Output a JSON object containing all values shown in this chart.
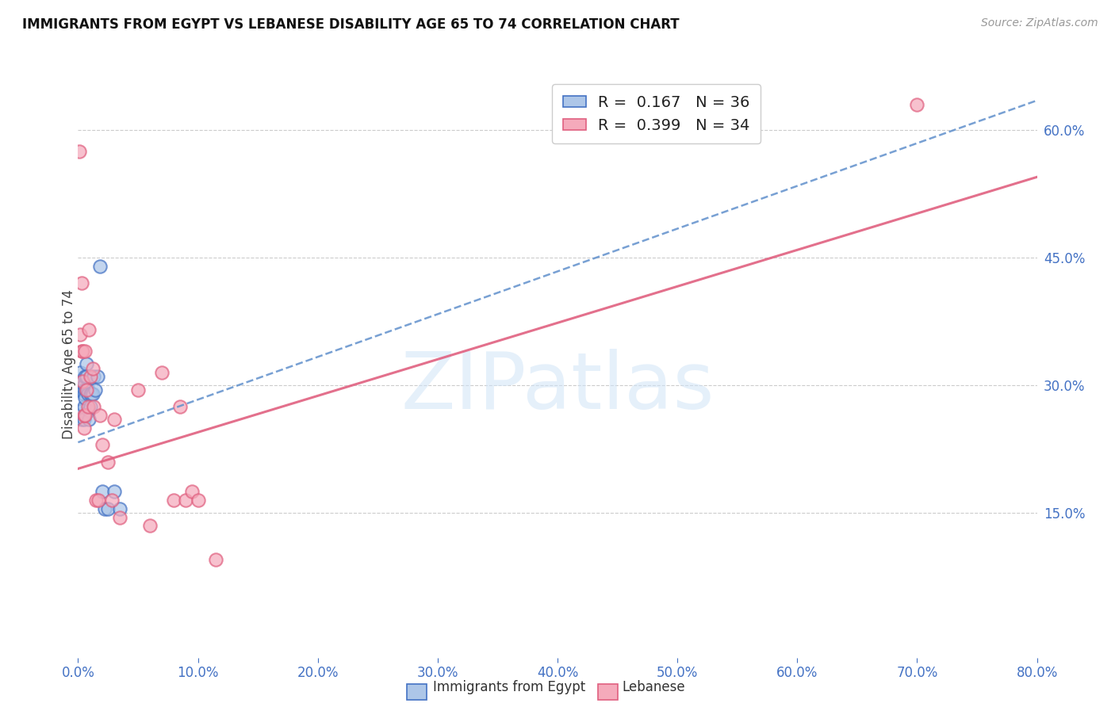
{
  "title": "IMMIGRANTS FROM EGYPT VS LEBANESE DISABILITY AGE 65 TO 74 CORRELATION CHART",
  "source": "Source: ZipAtlas.com",
  "ylabel": "Disability Age 65 to 74",
  "legend_label_1": "Immigrants from Egypt",
  "legend_label_2": "Lebanese",
  "R1": 0.167,
  "N1": 36,
  "R2": 0.399,
  "N2": 34,
  "xlim": [
    0.0,
    0.8
  ],
  "ylim": [
    -0.02,
    0.67
  ],
  "xtick_vals": [
    0.0,
    0.1,
    0.2,
    0.3,
    0.4,
    0.5,
    0.6,
    0.7,
    0.8
  ],
  "yticks_right": [
    0.15,
    0.3,
    0.45,
    0.6
  ],
  "color_egypt_fill": "#adc6e8",
  "color_egypt_edge": "#4472c4",
  "color_lebanese_fill": "#f5aabb",
  "color_lebanese_edge": "#e06080",
  "color_egypt_trend": "#6090cc",
  "color_lebanese_trend": "#e06080",
  "color_right_axis": "#4472c4",
  "background_color": "#ffffff",
  "watermark_text": "ZIPatlas",
  "egypt_trend_x0": 0.0,
  "egypt_trend_y0": 0.233,
  "egypt_trend_x1": 0.8,
  "egypt_trend_y1": 0.635,
  "lebanese_trend_x0": 0.0,
  "lebanese_trend_y0": 0.202,
  "lebanese_trend_x1": 0.8,
  "lebanese_trend_y1": 0.545,
  "egypt_x": [
    0.001,
    0.001,
    0.002,
    0.002,
    0.003,
    0.003,
    0.003,
    0.004,
    0.004,
    0.005,
    0.005,
    0.005,
    0.005,
    0.006,
    0.006,
    0.006,
    0.007,
    0.007,
    0.007,
    0.008,
    0.008,
    0.009,
    0.009,
    0.01,
    0.01,
    0.011,
    0.012,
    0.013,
    0.014,
    0.016,
    0.018,
    0.02,
    0.022,
    0.025,
    0.03,
    0.035
  ],
  "egypt_y": [
    0.295,
    0.305,
    0.305,
    0.315,
    0.295,
    0.26,
    0.27,
    0.305,
    0.295,
    0.3,
    0.29,
    0.275,
    0.26,
    0.31,
    0.295,
    0.285,
    0.325,
    0.31,
    0.295,
    0.295,
    0.29,
    0.27,
    0.26,
    0.29,
    0.275,
    0.29,
    0.29,
    0.31,
    0.295,
    0.31,
    0.44,
    0.175,
    0.155,
    0.155,
    0.175,
    0.155
  ],
  "lebanese_x": [
    0.001,
    0.002,
    0.003,
    0.003,
    0.004,
    0.004,
    0.005,
    0.005,
    0.006,
    0.006,
    0.007,
    0.008,
    0.009,
    0.01,
    0.012,
    0.013,
    0.015,
    0.017,
    0.018,
    0.02,
    0.025,
    0.028,
    0.03,
    0.035,
    0.05,
    0.06,
    0.07,
    0.08,
    0.085,
    0.09,
    0.095,
    0.1,
    0.115,
    0.7
  ],
  "lebanese_y": [
    0.575,
    0.36,
    0.42,
    0.34,
    0.305,
    0.34,
    0.25,
    0.265,
    0.265,
    0.34,
    0.295,
    0.275,
    0.365,
    0.31,
    0.32,
    0.275,
    0.165,
    0.165,
    0.265,
    0.23,
    0.21,
    0.165,
    0.26,
    0.145,
    0.295,
    0.135,
    0.315,
    0.165,
    0.275,
    0.165,
    0.175,
    0.165,
    0.095,
    0.63
  ]
}
